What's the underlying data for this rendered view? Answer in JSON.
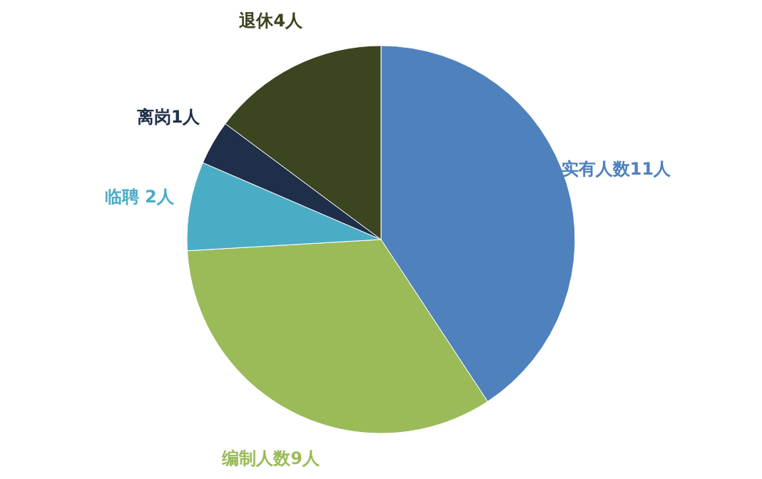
{
  "chart_data": {
    "type": "pie",
    "categories": [
      "实有人数11人",
      "编制人数9人",
      "临聘 2人",
      "离岗1人",
      "退休4人"
    ],
    "values": [
      11,
      9,
      2,
      1,
      4
    ],
    "colors": [
      "#4f81bd",
      "#9bbb59",
      "#4bacc6",
      "#1f2f4a",
      "#3b4520"
    ]
  }
}
